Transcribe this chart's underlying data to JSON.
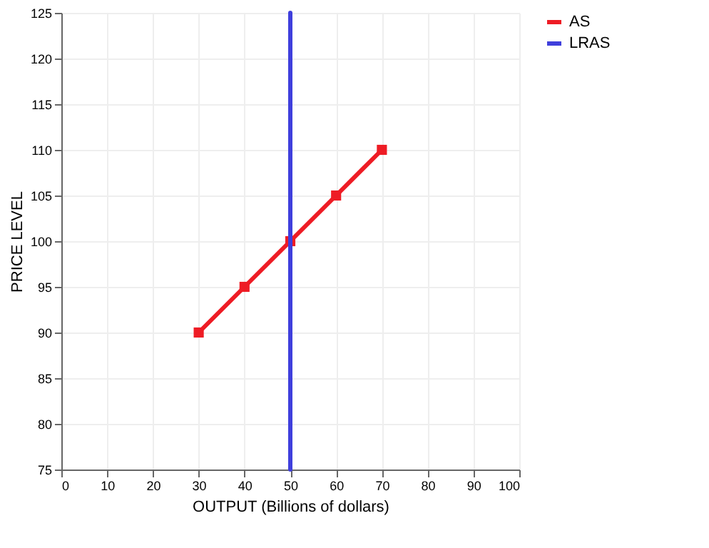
{
  "chart_data": {
    "type": "line",
    "xlabel": "OUTPUT (Billions of dollars)",
    "ylabel": "PRICE LEVEL",
    "xlim": [
      0,
      100
    ],
    "xticks": [
      0,
      10,
      20,
      30,
      40,
      50,
      60,
      70,
      80,
      90,
      100
    ],
    "ylim": [
      75,
      125
    ],
    "yticks": [
      75,
      80,
      85,
      90,
      95,
      100,
      105,
      110,
      115,
      120,
      125
    ],
    "grid": true,
    "legend": "top right",
    "series": [
      {
        "name": "AS",
        "color": "#ee1c25",
        "x": [
          30,
          40,
          50,
          60,
          70
        ],
        "values": [
          90,
          95,
          100,
          105,
          110
        ],
        "marker": "square"
      },
      {
        "name": "LRAS",
        "color": "#3f3fdc",
        "x": [
          50,
          50
        ],
        "values": [
          75,
          125
        ],
        "marker": "none"
      }
    ]
  }
}
